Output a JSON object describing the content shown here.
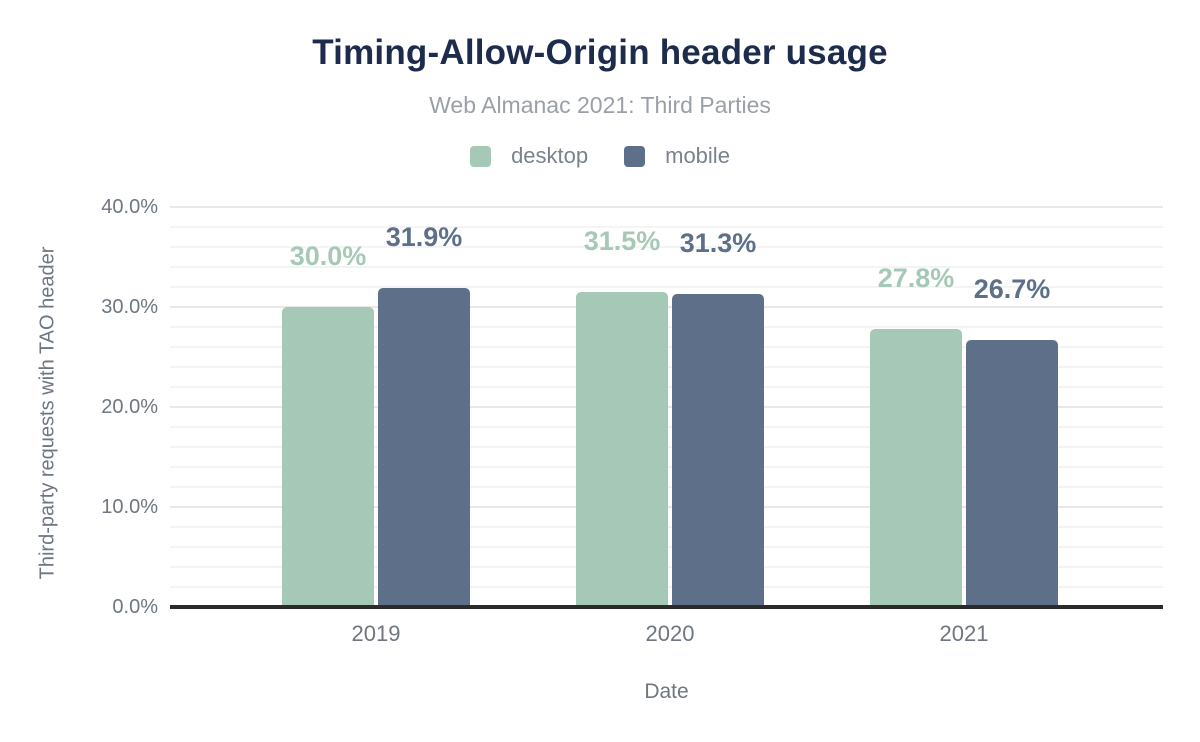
{
  "title": "Timing-Allow-Origin header usage",
  "subtitle": "Web Almanac 2021: Third Parties",
  "colors": {
    "desktop": "#a6c9b7",
    "mobile": "#5e7089",
    "title_text": "#1d2b4c",
    "subtitle_text": "#9aa0a8",
    "axis_text": "#6e7681",
    "axis_line": "#2b2b2b",
    "grid_minor": "#f4f4f4",
    "grid_major": "#e8e8e8"
  },
  "chart_data": {
    "type": "bar",
    "categories": [
      "2019",
      "2020",
      "2021"
    ],
    "series": [
      {
        "name": "desktop",
        "color": "#a6c9b7",
        "values": [
          30.0,
          31.5,
          27.8
        ],
        "labels": [
          "30.0%",
          "31.5%",
          "27.8%"
        ]
      },
      {
        "name": "mobile",
        "color": "#5e7089",
        "values": [
          31.9,
          31.3,
          26.7
        ],
        "labels": [
          "31.9%",
          "31.3%",
          "26.7%"
        ]
      }
    ],
    "xlabel": "Date",
    "ylabel": "Third-party requests with TAO header",
    "ylim": [
      0,
      40
    ],
    "ytick_step": 10,
    "yminor_step": 2,
    "yticks": [
      "0.0%",
      "10.0%",
      "20.0%",
      "30.0%",
      "40.0%"
    ],
    "grid": "on",
    "legend_position": "top-center",
    "data_labels": "above-bars"
  }
}
